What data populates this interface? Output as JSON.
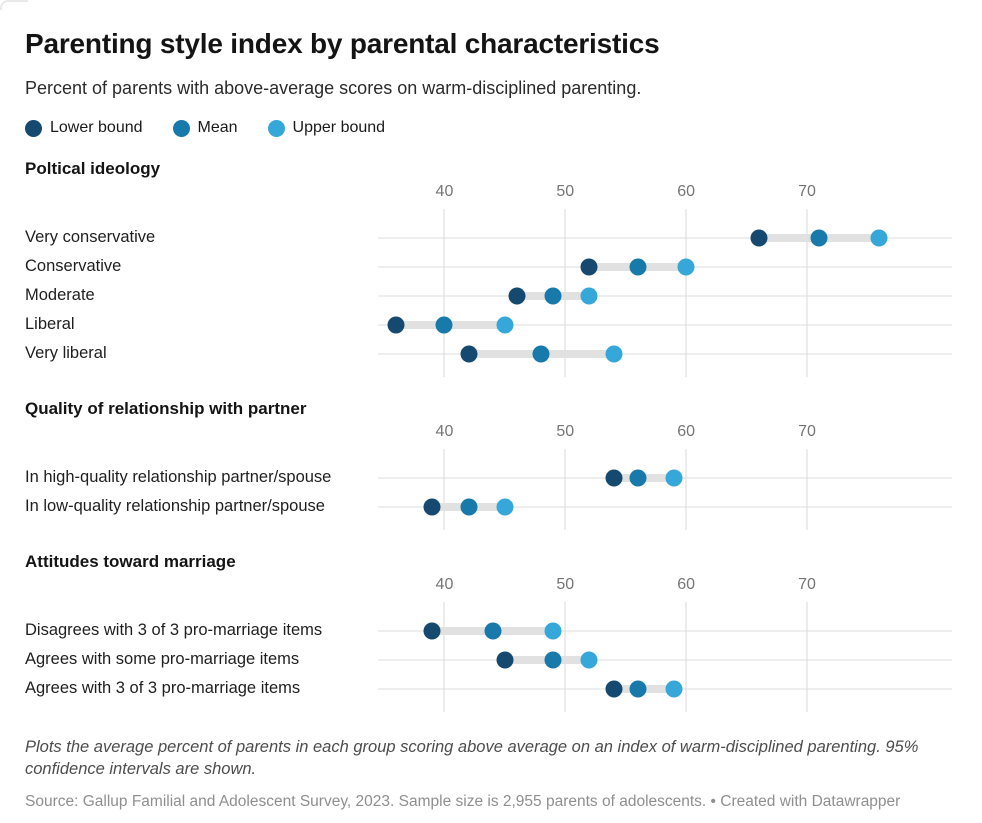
{
  "header": {
    "title": "Parenting style index by parental characteristics",
    "subtitle": "Percent of parents with above-average scores on warm-disciplined parenting."
  },
  "legend": {
    "items": [
      {
        "label": "Lower bound",
        "color": "#16496f"
      },
      {
        "label": "Mean",
        "color": "#1879ab"
      },
      {
        "label": "Upper bound",
        "color": "#36a7d9"
      }
    ]
  },
  "colors": {
    "lower_bound": "#16496f",
    "mean": "#1879ab",
    "upper_bound": "#36a7d9",
    "gridline": "#d9d9d9",
    "row_line": "#dcdcdc",
    "ci_bar": "#e1e1e1",
    "axis_text": "#757575"
  },
  "chart_data": {
    "type": "scatter",
    "subtype": "dot-range-plot",
    "unit": "percent",
    "axis": {
      "ticks": [
        40,
        50,
        60,
        70
      ],
      "min": 34.5,
      "max": 82
    },
    "series_roles": [
      "lower_bound",
      "mean",
      "upper_bound"
    ],
    "sections": [
      {
        "title": "Poltical ideology",
        "rows": [
          {
            "label": "Very conservative",
            "lower": 66,
            "mean": 71,
            "upper": 76
          },
          {
            "label": "Conservative",
            "lower": 52,
            "mean": 56,
            "upper": 60
          },
          {
            "label": "Moderate",
            "lower": 46,
            "mean": 49,
            "upper": 52
          },
          {
            "label": "Liberal",
            "lower": 36,
            "mean": 40,
            "upper": 45
          },
          {
            "label": "Very liberal",
            "lower": 42,
            "mean": 48,
            "upper": 54
          }
        ]
      },
      {
        "title": "Quality of relationship with partner",
        "rows": [
          {
            "label": "In high-quality relationship partner/spouse",
            "lower": 54,
            "mean": 56,
            "upper": 59
          },
          {
            "label": "In low-quality relationship partner/spouse",
            "lower": 39,
            "mean": 42,
            "upper": 45
          }
        ]
      },
      {
        "title": "Attitudes toward marriage",
        "rows": [
          {
            "label": "Disagrees with 3 of 3 pro-marriage items",
            "lower": 39,
            "mean": 44,
            "upper": 49
          },
          {
            "label": "Agrees with some pro-marriage items",
            "lower": 45,
            "mean": 49,
            "upper": 52
          },
          {
            "label": "Agrees with 3 of 3 pro-marriage items",
            "lower": 54,
            "mean": 56,
            "upper": 59
          }
        ]
      }
    ]
  },
  "footer": {
    "note": "Plots the average percent of parents in each group scoring above average on an index of warm-disciplined parenting. 95% confidence intervals are shown.",
    "source": "Source: Gallup Familial and Adolescent Survey, 2023. Sample size is 2,955 parents of adolescents. • Created with Datawrapper"
  }
}
